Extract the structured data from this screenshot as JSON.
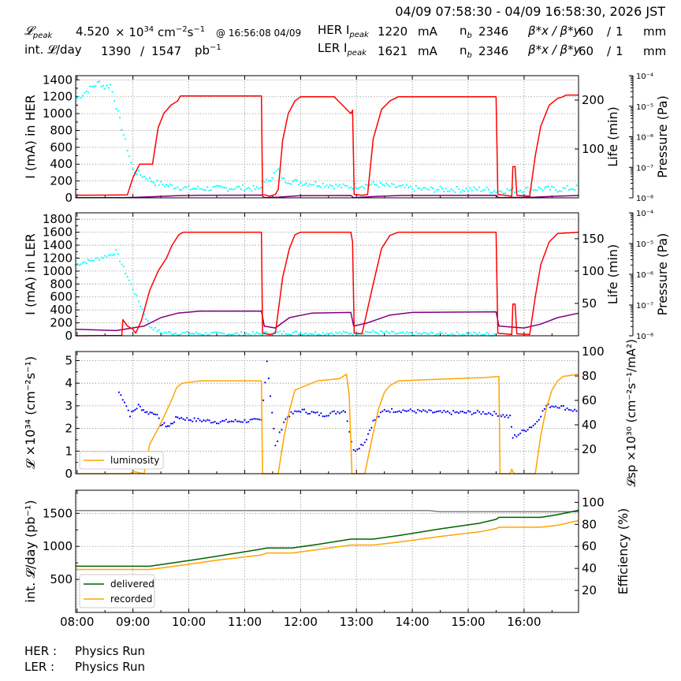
{
  "header": {
    "time_range": "04/09 07:58:30 - 04/09 16:58:30, 2026 JST",
    "lpeak_label": "𝓛",
    "lpeak_sub": "peak",
    "lpeak_value": "4.520",
    "lpeak_mult": "× 10",
    "lpeak_exp": "34",
    "lpeak_unit": "cm",
    "lpeak_unit_exp1": "−2",
    "lpeak_unit_s": "s",
    "lpeak_unit_exp2": "−1",
    "lpeak_time": "@ 16:56:08 04/09",
    "intl_label": "int. 𝓛/day",
    "intl_value1": "1390",
    "intl_sep": "/",
    "intl_value2": "1547",
    "intl_unit": "pb",
    "intl_unit_exp": "−1",
    "her_label": "HER I",
    "her_sub": "peak",
    "her_value": "1220",
    "her_unit": "mA",
    "ler_label": "LER I",
    "ler_sub": "peak",
    "ler_value": "1621",
    "ler_unit": "mA",
    "nb_label": "n",
    "nb_sub": "b",
    "nb_her": "2346",
    "nb_ler": "2346",
    "beta_label": "β*x / β*y",
    "beta_x_value": "60",
    "beta_sep": "/",
    "beta_y_value": "1",
    "beta_unit": "mm"
  },
  "footer": {
    "her_label": "HER :",
    "her_status": "Physics Run",
    "ler_label": "LER :",
    "ler_status": "Physics Run"
  },
  "colors": {
    "current": "#ff0000",
    "life": "#800080",
    "pressure": "#00ffff",
    "luminosity": "#ffa500",
    "specific": "#0000ff",
    "delivered": "#006400",
    "recorded": "#ffa500",
    "efficiency": "#808080"
  },
  "chart_data": [
    {
      "type": "line",
      "name": "HER",
      "ylabel": "I (mA) in HER",
      "ylim": [
        0,
        1450
      ],
      "yticks": [
        0,
        200,
        400,
        600,
        800,
        1000,
        1200,
        1400
      ],
      "y2label": "Life (min)",
      "y2lim": [
        0,
        250
      ],
      "y2ticks": [
        100,
        200
      ],
      "y3label": "Pressure (Pa)",
      "y3ticks": [
        "10⁻⁸",
        "10⁻⁷",
        "10⁻⁶",
        "10⁻⁵",
        "10⁻⁴"
      ],
      "current": [
        [
          7.975,
          30
        ],
        [
          8.9,
          35
        ],
        [
          9.0,
          240
        ],
        [
          9.12,
          400
        ],
        [
          9.35,
          400
        ],
        [
          9.45,
          830
        ],
        [
          9.55,
          1000
        ],
        [
          9.68,
          1100
        ],
        [
          9.8,
          1150
        ],
        [
          9.85,
          1210
        ],
        [
          11.3,
          1210
        ],
        [
          11.32,
          40
        ],
        [
          11.45,
          20
        ],
        [
          11.55,
          40
        ],
        [
          11.6,
          100
        ],
        [
          11.68,
          680
        ],
        [
          11.78,
          1000
        ],
        [
          11.9,
          1150
        ],
        [
          12.0,
          1200
        ],
        [
          12.6,
          1200
        ],
        [
          12.9,
          1000
        ],
        [
          12.93,
          1040
        ],
        [
          12.96,
          40
        ],
        [
          13.1,
          30
        ],
        [
          13.2,
          40
        ],
        [
          13.3,
          700
        ],
        [
          13.45,
          1050
        ],
        [
          13.6,
          1150
        ],
        [
          13.75,
          1200
        ],
        [
          15.5,
          1200
        ],
        [
          15.53,
          40
        ],
        [
          15.78,
          20
        ],
        [
          15.8,
          370
        ],
        [
          15.84,
          370
        ],
        [
          15.87,
          30
        ],
        [
          16.1,
          20
        ],
        [
          16.2,
          500
        ],
        [
          16.3,
          850
        ],
        [
          16.45,
          1100
        ],
        [
          16.6,
          1180
        ],
        [
          16.7,
          1200
        ],
        [
          16.75,
          1220
        ],
        [
          16.975,
          1220
        ]
      ],
      "life": [
        [
          7.975,
          2
        ],
        [
          8.8,
          3
        ],
        [
          9.15,
          8
        ],
        [
          9.5,
          18
        ],
        [
          9.8,
          25
        ],
        [
          10.2,
          30
        ],
        [
          11.0,
          32
        ],
        [
          11.3,
          33
        ],
        [
          11.35,
          3
        ],
        [
          11.6,
          8
        ],
        [
          12.0,
          25
        ],
        [
          12.9,
          28
        ],
        [
          12.95,
          2
        ],
        [
          13.3,
          15
        ],
        [
          13.8,
          28
        ],
        [
          15.5,
          30
        ],
        [
          15.55,
          2
        ],
        [
          16.2,
          8
        ],
        [
          16.6,
          20
        ],
        [
          16.975,
          28
        ]
      ],
      "pressure": [
        [
          8.0,
          1180
        ],
        [
          8.1,
          1230
        ],
        [
          8.2,
          1280
        ],
        [
          8.3,
          1330
        ],
        [
          8.4,
          1370
        ],
        [
          8.5,
          1310
        ],
        [
          8.6,
          1340
        ],
        [
          9.0,
          330
        ],
        [
          9.2,
          250
        ],
        [
          9.4,
          180
        ],
        [
          9.6,
          150
        ],
        [
          9.8,
          130
        ],
        [
          10.0,
          110
        ],
        [
          10.5,
          110
        ],
        [
          11.0,
          120
        ],
        [
          11.25,
          100
        ],
        [
          11.6,
          330
        ],
        [
          11.7,
          210
        ],
        [
          12.0,
          180
        ],
        [
          12.4,
          160
        ],
        [
          12.8,
          130
        ],
        [
          13.3,
          160
        ],
        [
          13.7,
          130
        ],
        [
          14.2,
          100
        ],
        [
          14.8,
          100
        ],
        [
          15.3,
          100
        ],
        [
          15.5,
          80
        ],
        [
          16.3,
          110
        ],
        [
          16.6,
          100
        ],
        [
          16.975,
          120
        ]
      ]
    },
    {
      "type": "line",
      "name": "LER",
      "ylabel": "I (mA) in LER",
      "ylim": [
        0,
        1900
      ],
      "yticks": [
        0,
        200,
        400,
        600,
        800,
        1000,
        1200,
        1400,
        1600,
        1800
      ],
      "y2label": "Life (min)",
      "y2lim": [
        0,
        190
      ],
      "y2ticks": [
        50,
        100,
        150
      ],
      "y3label": "Pressure (Pa)",
      "y3ticks": [
        "10⁻⁸",
        "10⁻⁷",
        "10⁻⁶",
        "10⁻⁵",
        "10⁻⁴"
      ],
      "current": [
        [
          7.975,
          0
        ],
        [
          8.8,
          5
        ],
        [
          8.82,
          250
        ],
        [
          8.9,
          150
        ],
        [
          9.0,
          100
        ],
        [
          9.05,
          40
        ],
        [
          9.15,
          230
        ],
        [
          9.3,
          700
        ],
        [
          9.45,
          1000
        ],
        [
          9.6,
          1200
        ],
        [
          9.7,
          1400
        ],
        [
          9.82,
          1560
        ],
        [
          9.9,
          1600
        ],
        [
          11.3,
          1600
        ],
        [
          11.32,
          40
        ],
        [
          11.45,
          20
        ],
        [
          11.55,
          40
        ],
        [
          11.68,
          900
        ],
        [
          11.8,
          1350
        ],
        [
          11.9,
          1560
        ],
        [
          12.0,
          1600
        ],
        [
          12.9,
          1600
        ],
        [
          12.93,
          1450
        ],
        [
          12.96,
          40
        ],
        [
          13.1,
          30
        ],
        [
          13.3,
          800
        ],
        [
          13.45,
          1350
        ],
        [
          13.6,
          1550
        ],
        [
          13.75,
          1600
        ],
        [
          15.5,
          1600
        ],
        [
          15.53,
          40
        ],
        [
          15.78,
          20
        ],
        [
          15.8,
          490
        ],
        [
          15.84,
          490
        ],
        [
          15.87,
          30
        ],
        [
          16.1,
          20
        ],
        [
          16.2,
          600
        ],
        [
          16.3,
          1100
        ],
        [
          16.45,
          1450
        ],
        [
          16.6,
          1580
        ],
        [
          16.975,
          1600
        ]
      ],
      "life": [
        [
          7.975,
          10
        ],
        [
          8.7,
          8
        ],
        [
          9.2,
          15
        ],
        [
          9.5,
          28
        ],
        [
          9.8,
          35
        ],
        [
          10.2,
          38
        ],
        [
          11.3,
          38
        ],
        [
          11.35,
          15
        ],
        [
          11.55,
          12
        ],
        [
          11.8,
          28
        ],
        [
          12.2,
          35
        ],
        [
          12.9,
          36
        ],
        [
          12.95,
          15
        ],
        [
          13.2,
          20
        ],
        [
          13.6,
          32
        ],
        [
          14.0,
          36
        ],
        [
          15.5,
          37
        ],
        [
          15.55,
          15
        ],
        [
          16.0,
          12
        ],
        [
          16.3,
          18
        ],
        [
          16.6,
          28
        ],
        [
          16.975,
          35
        ]
      ],
      "pressure": [
        [
          7.975,
          1100
        ],
        [
          8.2,
          1150
        ],
        [
          8.4,
          1200
        ],
        [
          8.6,
          1250
        ],
        [
          8.7,
          1300
        ],
        [
          9.3,
          150
        ],
        [
          9.5,
          50
        ],
        [
          9.8,
          40
        ],
        [
          10.3,
          30
        ],
        [
          10.8,
          30
        ],
        [
          11.25,
          30
        ],
        [
          11.7,
          50
        ],
        [
          12.2,
          40
        ],
        [
          12.8,
          40
        ],
        [
          13.2,
          60
        ],
        [
          13.8,
          30
        ],
        [
          14.5,
          30
        ],
        [
          15.2,
          30
        ],
        [
          15.5,
          20
        ]
      ]
    },
    {
      "type": "line",
      "name": "Luminosity",
      "ylabel": "𝓛 ×10³⁴ (cm⁻²s⁻¹)",
      "ylim": [
        0,
        5.4
      ],
      "yticks": [
        0,
        1,
        2,
        3,
        4,
        5
      ],
      "y2label": "𝓛sp ×10³⁰ (cm⁻²s⁻¹/mA²)",
      "y2lim": [
        0,
        100
      ],
      "y2ticks": [
        20,
        40,
        60,
        80,
        100
      ],
      "legend": "luminosity",
      "luminosity": [
        [
          7.975,
          0
        ],
        [
          8.95,
          0
        ],
        [
          9.0,
          0.1
        ],
        [
          9.2,
          0
        ],
        [
          9.3,
          1.3
        ],
        [
          9.45,
          2.0
        ],
        [
          9.55,
          2.5
        ],
        [
          9.7,
          3.3
        ],
        [
          9.78,
          3.8
        ],
        [
          9.88,
          4.0
        ],
        [
          10.2,
          4.1
        ],
        [
          11.3,
          4.1
        ],
        [
          11.32,
          0
        ],
        [
          11.6,
          0
        ],
        [
          11.7,
          1.6
        ],
        [
          11.8,
          2.8
        ],
        [
          11.9,
          3.7
        ],
        [
          12.1,
          3.9
        ],
        [
          12.3,
          4.1
        ],
        [
          12.7,
          4.2
        ],
        [
          12.82,
          4.4
        ],
        [
          12.87,
          3.5
        ],
        [
          12.92,
          0
        ],
        [
          13.15,
          0
        ],
        [
          13.3,
          1.8
        ],
        [
          13.4,
          2.9
        ],
        [
          13.5,
          3.6
        ],
        [
          13.6,
          3.9
        ],
        [
          13.75,
          4.1
        ],
        [
          14.2,
          4.15
        ],
        [
          15.3,
          4.25
        ],
        [
          15.55,
          4.3
        ],
        [
          15.57,
          0
        ],
        [
          15.75,
          0
        ],
        [
          15.78,
          0.2
        ],
        [
          15.82,
          0
        ],
        [
          16.2,
          0
        ],
        [
          16.3,
          1.7
        ],
        [
          16.4,
          2.9
        ],
        [
          16.5,
          3.7
        ],
        [
          16.6,
          4.1
        ],
        [
          16.7,
          4.3
        ],
        [
          16.975,
          4.4
        ]
      ],
      "specific": [
        [
          8.75,
          3.6
        ],
        [
          8.85,
          3.2
        ],
        [
          8.95,
          2.6
        ],
        [
          9.1,
          3.0
        ],
        [
          9.25,
          2.7
        ],
        [
          9.4,
          2.7
        ],
        [
          9.5,
          2.2
        ],
        [
          9.65,
          2.1
        ],
        [
          9.8,
          2.5
        ],
        [
          10.0,
          2.4
        ],
        [
          10.5,
          2.3
        ],
        [
          11.3,
          2.35
        ],
        [
          11.4,
          5.0
        ],
        [
          11.55,
          1.2
        ],
        [
          11.7,
          2.3
        ],
        [
          11.8,
          2.6
        ],
        [
          12.0,
          2.8
        ],
        [
          12.4,
          2.6
        ],
        [
          12.8,
          2.8
        ],
        [
          12.95,
          1.0
        ],
        [
          13.15,
          1.4
        ],
        [
          13.3,
          2.3
        ],
        [
          13.5,
          2.8
        ],
        [
          13.8,
          2.8
        ],
        [
          14.5,
          2.7
        ],
        [
          15.3,
          2.7
        ],
        [
          15.5,
          2.65
        ],
        [
          15.75,
          2.5
        ],
        [
          15.8,
          1.6
        ],
        [
          16.2,
          2.2
        ],
        [
          16.4,
          3.0
        ],
        [
          16.6,
          3.0
        ],
        [
          16.975,
          2.75
        ]
      ]
    },
    {
      "type": "line",
      "name": "Integrated",
      "ylabel": "int. 𝓛/day (pb⁻¹)",
      "ylim": [
        0,
        1850
      ],
      "yticks": [
        500,
        1000,
        1500
      ],
      "y2label": "Efficiency (%)",
      "y2lim": [
        0,
        111
      ],
      "y2ticks": [
        20,
        40,
        60,
        80,
        100
      ],
      "legend": [
        "delivered",
        "recorded"
      ],
      "delivered": [
        [
          7.975,
          700
        ],
        [
          9.3,
          700
        ],
        [
          9.8,
          760
        ],
        [
          10.5,
          850
        ],
        [
          11.3,
          960
        ],
        [
          11.4,
          975
        ],
        [
          11.85,
          975
        ],
        [
          12.3,
          1030
        ],
        [
          12.9,
          1110
        ],
        [
          13.3,
          1110
        ],
        [
          13.8,
          1170
        ],
        [
          14.5,
          1265
        ],
        [
          15.2,
          1350
        ],
        [
          15.5,
          1410
        ],
        [
          15.55,
          1440
        ],
        [
          16.3,
          1440
        ],
        [
          16.6,
          1480
        ],
        [
          16.975,
          1547
        ]
      ],
      "recorded": [
        [
          7.975,
          650
        ],
        [
          9.3,
          650
        ],
        [
          9.8,
          705
        ],
        [
          10.5,
          790
        ],
        [
          11.3,
          870
        ],
        [
          11.4,
          900
        ],
        [
          11.85,
          900
        ],
        [
          12.3,
          950
        ],
        [
          12.9,
          1020
        ],
        [
          13.3,
          1020
        ],
        [
          13.8,
          1070
        ],
        [
          14.5,
          1150
        ],
        [
          15.2,
          1220
        ],
        [
          15.5,
          1270
        ],
        [
          15.55,
          1290
        ],
        [
          16.3,
          1290
        ],
        [
          16.6,
          1320
        ],
        [
          16.975,
          1390
        ]
      ],
      "efficiency": [
        [
          7.975,
          92.5
        ],
        [
          14.3,
          92.5
        ],
        [
          14.5,
          91.5
        ],
        [
          16.975,
          91.5
        ]
      ]
    }
  ],
  "xaxis": {
    "ticks": [
      "08:00",
      "09:00",
      "10:00",
      "11:00",
      "12:00",
      "13:00",
      "14:00",
      "15:00",
      "16:00"
    ],
    "tick_values": [
      8,
      9,
      10,
      11,
      12,
      13,
      14,
      15,
      16
    ],
    "xlim": [
      7.975,
      16.975
    ]
  }
}
